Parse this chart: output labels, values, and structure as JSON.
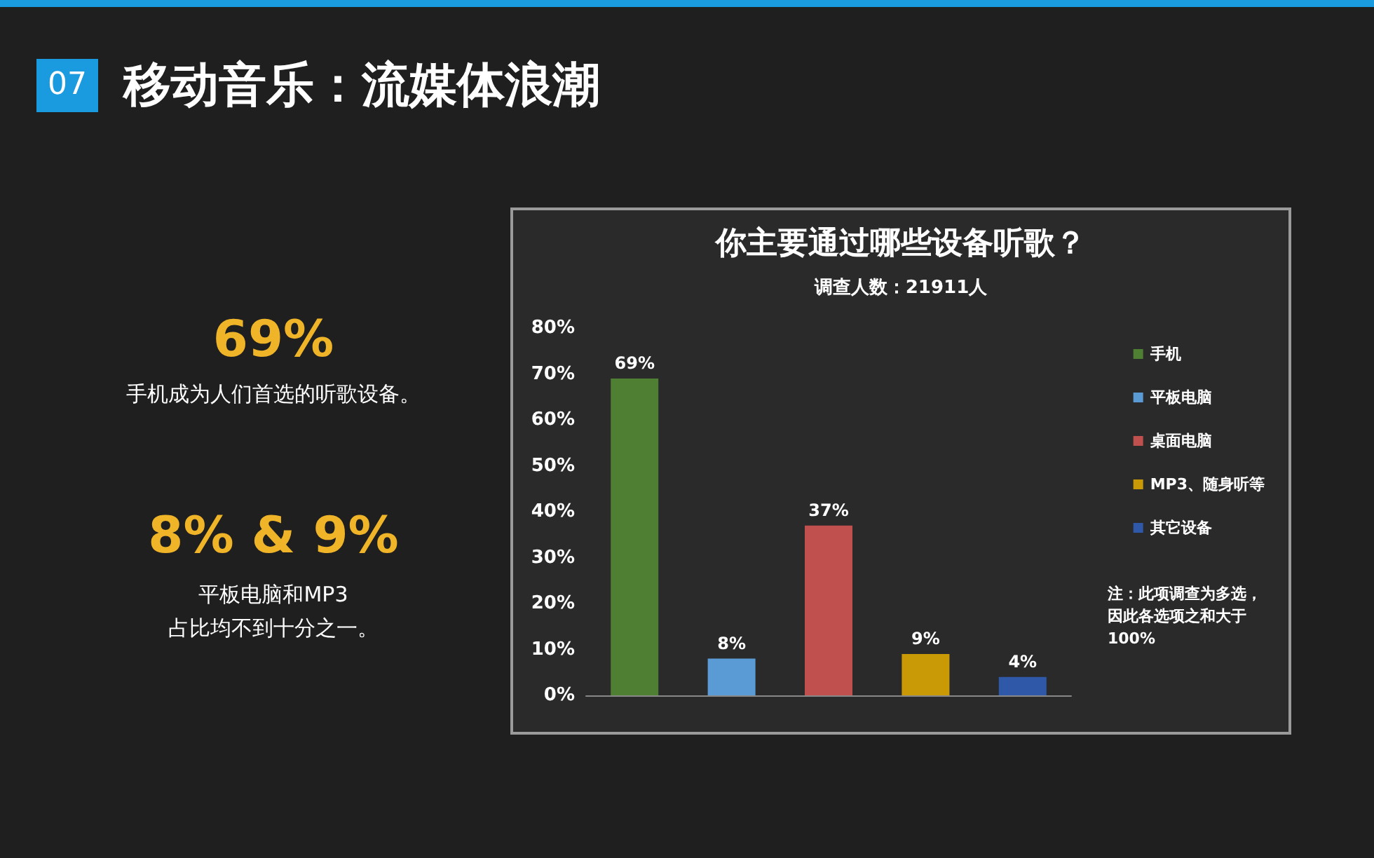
{
  "chart_data": {
    "type": "bar",
    "title": "你主要通过哪些设备听歌？",
    "subtitle": "调查人数：21911人",
    "categories": [
      null,
      null,
      null,
      null,
      null
    ],
    "series": [
      {
        "name": "手机",
        "color": "#4e7f33",
        "values": [
          69,
          null,
          null,
          null,
          null
        ],
        "value_labels": [
          "69%",
          null,
          null,
          null,
          null
        ]
      },
      {
        "name": "平板电脑",
        "color": "#5b9bd5",
        "values": [
          null,
          8,
          null,
          null,
          null
        ],
        "value_labels": [
          null,
          "8%",
          null,
          null,
          null
        ]
      },
      {
        "name": "桌面电脑",
        "color": "#c0504d",
        "values": [
          null,
          null,
          37,
          null,
          null
        ],
        "value_labels": [
          null,
          null,
          "37%",
          null,
          null
        ]
      },
      {
        "name": "MP3、随身听等",
        "color": "#c99a06",
        "values": [
          null,
          null,
          null,
          9,
          null
        ],
        "value_labels": [
          null,
          null,
          null,
          "9%",
          null
        ]
      },
      {
        "name": "其它设备",
        "color": "#2f59a8",
        "values": [
          null,
          null,
          null,
          null,
          4
        ],
        "value_labels": [
          null,
          null,
          null,
          null,
          "4%"
        ]
      }
    ],
    "ylim": [
      0,
      80
    ],
    "yticks": [
      {
        "value": 0,
        "label": "0%"
      },
      {
        "value": 10,
        "label": "10%"
      },
      {
        "value": 20,
        "label": "20%"
      },
      {
        "value": 30,
        "label": "30%"
      },
      {
        "value": 40,
        "label": "40%"
      },
      {
        "value": 50,
        "label": "50%"
      },
      {
        "value": 60,
        "label": "60%"
      },
      {
        "value": 70,
        "label": "70%"
      },
      {
        "value": 80,
        "label": "80%"
      }
    ],
    "grid": false,
    "legend": "right",
    "annotations": [
      "07",
      "移动音乐：流媒体浪潮",
      "69%",
      "手机成为人们首选的听歌设备。",
      "8% & 9%",
      "平板电脑和MP3\n占比均不到十分之一。",
      "注：此项调查为多选，因此各选项之和大于100%"
    ]
  }
}
